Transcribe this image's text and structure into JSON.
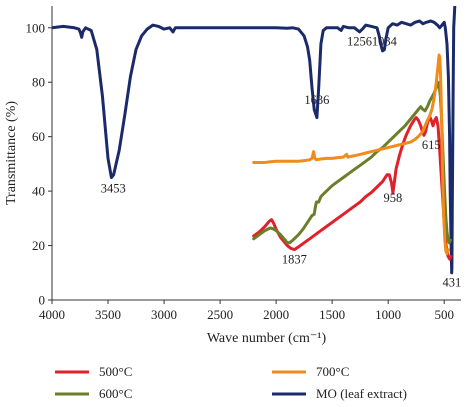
{
  "chart_data": {
    "type": "line",
    "title": "",
    "xlabel": "Wave number (cm⁻¹)",
    "ylabel": "Transmittance (%)",
    "xlim": [
      4000,
      350
    ],
    "ylim": [
      0,
      108
    ],
    "x_reversed": true,
    "x_ticks": [
      4000,
      3500,
      3000,
      2500,
      2000,
      1500,
      1000,
      500
    ],
    "x_tick_labels": [
      "4000",
      "3500",
      "3000",
      "2500",
      "2000",
      "1500",
      "1000",
      "500"
    ],
    "y_ticks": [
      0,
      20,
      40,
      60,
      80,
      100
    ],
    "y_tick_labels": [
      "0",
      "20",
      "40",
      "60",
      "80",
      "100"
    ],
    "grid": false,
    "legend_position": "bottom",
    "series": [
      {
        "name": "MO (leaf extract)",
        "color": "#1b2a6b",
        "points": [
          [
            4000,
            100
          ],
          [
            3900,
            100.5
          ],
          [
            3800,
            100
          ],
          [
            3760,
            99.5
          ],
          [
            3745,
            98
          ],
          [
            3735,
            96.5
          ],
          [
            3725,
            98.5
          ],
          [
            3700,
            100
          ],
          [
            3650,
            99
          ],
          [
            3600,
            92
          ],
          [
            3550,
            75
          ],
          [
            3500,
            52
          ],
          [
            3470,
            45
          ],
          [
            3450,
            46
          ],
          [
            3400,
            55
          ],
          [
            3350,
            68
          ],
          [
            3300,
            82
          ],
          [
            3250,
            92
          ],
          [
            3200,
            97
          ],
          [
            3150,
            99.5
          ],
          [
            3100,
            101
          ],
          [
            3050,
            100.5
          ],
          [
            3000,
            99.5
          ],
          [
            2950,
            100
          ],
          [
            2920,
            98.5
          ],
          [
            2900,
            100
          ],
          [
            2850,
            100
          ],
          [
            2800,
            100
          ],
          [
            2700,
            100
          ],
          [
            2600,
            100
          ],
          [
            2500,
            100
          ],
          [
            2400,
            100
          ],
          [
            2300,
            100
          ],
          [
            2200,
            100
          ],
          [
            2100,
            100
          ],
          [
            2000,
            100
          ],
          [
            1900,
            99.8
          ],
          [
            1850,
            100
          ],
          [
            1800,
            99.5
          ],
          [
            1750,
            97
          ],
          [
            1720,
            93
          ],
          [
            1700,
            88
          ],
          [
            1680,
            78
          ],
          [
            1660,
            70
          ],
          [
            1636,
            67
          ],
          [
            1620,
            78
          ],
          [
            1600,
            94
          ],
          [
            1580,
            99
          ],
          [
            1550,
            100
          ],
          [
            1500,
            100
          ],
          [
            1450,
            100
          ],
          [
            1420,
            99
          ],
          [
            1400,
            100.5
          ],
          [
            1350,
            100
          ],
          [
            1300,
            100
          ],
          [
            1256,
            98.5
          ],
          [
            1230,
            99.5
          ],
          [
            1200,
            101
          ],
          [
            1150,
            100.5
          ],
          [
            1100,
            100
          ],
          [
            1080,
            97
          ],
          [
            1060,
            93
          ],
          [
            1050,
            91.5
          ],
          [
            1034,
            92
          ],
          [
            1020,
            96
          ],
          [
            1000,
            100
          ],
          [
            960,
            101.5
          ],
          [
            920,
            101
          ],
          [
            880,
            102
          ],
          [
            840,
            101.5
          ],
          [
            800,
            101
          ],
          [
            760,
            102
          ],
          [
            720,
            102.5
          ],
          [
            690,
            101.5
          ],
          [
            660,
            102
          ],
          [
            620,
            102.5
          ],
          [
            590,
            102
          ],
          [
            560,
            101
          ],
          [
            540,
            100
          ],
          [
            520,
            101
          ],
          [
            500,
            102
          ],
          [
            490,
            100
          ],
          [
            475,
            94
          ],
          [
            462,
            82
          ],
          [
            452,
            60
          ],
          [
            446,
            40
          ],
          [
            440,
            25
          ],
          [
            436,
            15
          ],
          [
            433,
            10
          ],
          [
            431,
            12
          ],
          [
            428,
            35
          ],
          [
            420,
            80
          ],
          [
            415,
            100
          ],
          [
            405,
            108
          ]
        ]
      },
      {
        "name": "500°C",
        "color": "#e0202a",
        "points": [
          [
            2200,
            23.5
          ],
          [
            2150,
            25
          ],
          [
            2100,
            27
          ],
          [
            2060,
            29
          ],
          [
            2040,
            29.5
          ],
          [
            2020,
            28
          ],
          [
            2000,
            26
          ],
          [
            1960,
            23
          ],
          [
            1900,
            20
          ],
          [
            1870,
            19
          ],
          [
            1837,
            18.5
          ],
          [
            1800,
            19.5
          ],
          [
            1750,
            21
          ],
          [
            1700,
            22.5
          ],
          [
            1650,
            24
          ],
          [
            1600,
            25.5
          ],
          [
            1550,
            27
          ],
          [
            1500,
            28.5
          ],
          [
            1450,
            30
          ],
          [
            1400,
            31.5
          ],
          [
            1350,
            33
          ],
          [
            1300,
            34.5
          ],
          [
            1250,
            36
          ],
          [
            1200,
            38
          ],
          [
            1150,
            39.5
          ],
          [
            1100,
            41.5
          ],
          [
            1050,
            43.5
          ],
          [
            1010,
            46
          ],
          [
            990,
            46
          ],
          [
            970,
            43
          ],
          [
            958,
            39.5
          ],
          [
            945,
            43
          ],
          [
            930,
            48
          ],
          [
            900,
            53
          ],
          [
            870,
            57
          ],
          [
            840,
            60.5
          ],
          [
            800,
            64
          ],
          [
            770,
            66
          ],
          [
            750,
            67
          ],
          [
            730,
            66
          ],
          [
            710,
            64
          ],
          [
            695,
            62
          ],
          [
            680,
            60.5
          ],
          [
            665,
            62
          ],
          [
            650,
            65
          ],
          [
            630,
            67.5
          ],
          [
            615,
            66
          ],
          [
            600,
            64
          ],
          [
            585,
            66
          ],
          [
            570,
            67
          ],
          [
            555,
            64
          ],
          [
            540,
            55
          ],
          [
            525,
            45
          ],
          [
            510,
            35
          ],
          [
            495,
            25
          ],
          [
            480,
            19
          ],
          [
            465,
            16
          ],
          [
            450,
            15
          ],
          [
            440,
            16
          ]
        ]
      },
      {
        "name": "600°C",
        "color": "#6b7f2a",
        "points": [
          [
            2200,
            22.5
          ],
          [
            2150,
            24
          ],
          [
            2100,
            25.5
          ],
          [
            2050,
            26.5
          ],
          [
            2020,
            26
          ],
          [
            2000,
            25.5
          ],
          [
            1960,
            24
          ],
          [
            1920,
            22
          ],
          [
            1900,
            21
          ],
          [
            1880,
            21
          ],
          [
            1850,
            22
          ],
          [
            1800,
            24
          ],
          [
            1760,
            26
          ],
          [
            1720,
            28.5
          ],
          [
            1680,
            31
          ],
          [
            1660,
            31.5
          ],
          [
            1650,
            34
          ],
          [
            1640,
            36
          ],
          [
            1620,
            36
          ],
          [
            1600,
            38
          ],
          [
            1550,
            40
          ],
          [
            1500,
            42
          ],
          [
            1450,
            43.5
          ],
          [
            1400,
            45
          ],
          [
            1350,
            46.5
          ],
          [
            1300,
            48
          ],
          [
            1250,
            49.5
          ],
          [
            1200,
            51
          ],
          [
            1150,
            52.5
          ],
          [
            1100,
            54.5
          ],
          [
            1050,
            56
          ],
          [
            1000,
            58
          ],
          [
            950,
            60
          ],
          [
            900,
            62
          ],
          [
            850,
            64
          ],
          [
            800,
            66.5
          ],
          [
            760,
            68.5
          ],
          [
            730,
            70
          ],
          [
            710,
            71
          ],
          [
            690,
            70
          ],
          [
            670,
            69.5
          ],
          [
            650,
            71
          ],
          [
            630,
            73
          ],
          [
            610,
            74.5
          ],
          [
            590,
            76
          ],
          [
            570,
            78
          ],
          [
            555,
            80
          ],
          [
            545,
            79
          ],
          [
            535,
            75
          ],
          [
            525,
            68
          ],
          [
            515,
            58
          ],
          [
            505,
            48
          ],
          [
            495,
            38
          ],
          [
            485,
            30
          ],
          [
            475,
            25
          ],
          [
            465,
            22
          ],
          [
            455,
            21
          ],
          [
            445,
            22
          ]
        ]
      },
      {
        "name": "700°C",
        "color": "#f08b1c",
        "points": [
          [
            2200,
            50.5
          ],
          [
            2150,
            50.5
          ],
          [
            2100,
            50.5
          ],
          [
            2050,
            50.8
          ],
          [
            2000,
            51
          ],
          [
            1950,
            51
          ],
          [
            1900,
            51
          ],
          [
            1850,
            51
          ],
          [
            1800,
            51
          ],
          [
            1750,
            51.2
          ],
          [
            1700,
            51.5
          ],
          [
            1680,
            52
          ],
          [
            1665,
            54.5
          ],
          [
            1655,
            52
          ],
          [
            1640,
            51.5
          ],
          [
            1600,
            51.8
          ],
          [
            1550,
            52
          ],
          [
            1500,
            52
          ],
          [
            1450,
            52.3
          ],
          [
            1400,
            52.5
          ],
          [
            1370,
            53.5
          ],
          [
            1360,
            52.5
          ],
          [
            1300,
            53
          ],
          [
            1250,
            53.5
          ],
          [
            1200,
            54
          ],
          [
            1150,
            54.5
          ],
          [
            1100,
            55
          ],
          [
            1050,
            55.5
          ],
          [
            1000,
            56
          ],
          [
            950,
            56.5
          ],
          [
            900,
            57
          ],
          [
            850,
            57.5
          ],
          [
            800,
            58
          ],
          [
            760,
            59
          ],
          [
            720,
            60.5
          ],
          [
            690,
            62
          ],
          [
            670,
            64
          ],
          [
            650,
            66
          ],
          [
            630,
            67.5
          ],
          [
            610,
            70
          ],
          [
            590,
            74
          ],
          [
            570,
            80
          ],
          [
            555,
            86
          ],
          [
            545,
            90
          ],
          [
            538,
            89
          ],
          [
            530,
            80
          ],
          [
            522,
            65
          ],
          [
            515,
            48
          ],
          [
            505,
            32
          ],
          [
            495,
            22
          ],
          [
            485,
            18
          ],
          [
            475,
            17
          ],
          [
            465,
            18.5
          ]
        ]
      }
    ],
    "annotations": [
      {
        "text": "3453",
        "x": 3453,
        "y": 39.5
      },
      {
        "text": "1636",
        "x": 1636,
        "y": 72
      },
      {
        "text": "1256",
        "x": 1256,
        "y": 93.5
      },
      {
        "text": "1034",
        "x": 1034,
        "y": 93.5
      },
      {
        "text": "615",
        "x": 615,
        "y": 55.5
      },
      {
        "text": "958",
        "x": 958,
        "y": 36
      },
      {
        "text": "1837",
        "x": 1837,
        "y": 13.5
      },
      {
        "text": "431",
        "x": 431,
        "y": 5
      }
    ],
    "legend": [
      {
        "label": "500°C",
        "color": "#e0202a"
      },
      {
        "label": "700°C",
        "color": "#f08b1c"
      },
      {
        "label": "600°C",
        "color": "#6b7f2a"
      },
      {
        "label": "MO (leaf extract)",
        "color": "#1b2a6b"
      }
    ]
  }
}
